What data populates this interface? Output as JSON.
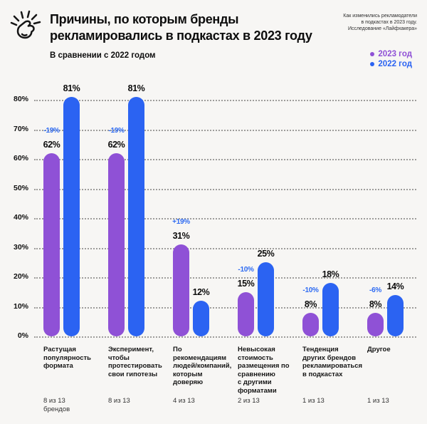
{
  "header": {
    "title_line1": "Причины, по которым бренды",
    "title_line2": "рекламировались в подкастах в 2023 году",
    "subtitle": "В сравнении с 2022 годом",
    "source_lines": "Как изменились рекламодатели\nв подкастах в 2023 году.\nИсследование «Лайфхакера»"
  },
  "legend": {
    "items": [
      {
        "label": "2023 год",
        "color": "#8f51d6"
      },
      {
        "label": "2022 год",
        "color": "#2b63f2"
      }
    ]
  },
  "colors": {
    "background": "#f7f6f4",
    "bar_2023": "#8f51d6",
    "bar_2022": "#2b63f2",
    "change_label": "#2e6bf2",
    "grid": "#9e9d9b",
    "text": "#111111"
  },
  "chart_data": {
    "type": "bar",
    "title": "Причины, по которым бренды рекламировались в подкастах в 2023 году",
    "subtitle": "В сравнении с 2022 годом",
    "xlabel": "",
    "ylabel": "",
    "ylim": [
      0,
      80
    ],
    "ytick_labels": [
      "80%",
      "70%",
      "60%",
      "50%",
      "40%",
      "30%",
      "20%",
      "10%",
      "0%"
    ],
    "grid": "dotted-horizontal",
    "legend_position": "top-right",
    "value_suffix": "%",
    "categories": [
      [
        "Растущая",
        "популярность",
        "формата"
      ],
      [
        "Эксперимент,",
        "чтобы",
        "протестировать",
        "свои гипотезы"
      ],
      [
        "По",
        "рекомендациям",
        "людей/компаний,",
        "которым",
        "доверяю"
      ],
      [
        "Невысокая",
        "стоимость",
        "размещения по",
        "сравнению",
        "с другими",
        "форматами"
      ],
      [
        "Тенденция",
        "других брендов",
        "рекламироваться",
        "в подкастах"
      ],
      [
        "Другое"
      ]
    ],
    "counts": [
      [
        "8 из 13",
        "брендов"
      ],
      [
        "8 из 13"
      ],
      [
        "4 из 13"
      ],
      [
        "2 из 13"
      ],
      [
        "1 из 13"
      ],
      [
        "1 из 13"
      ]
    ],
    "series": [
      {
        "name": "2023 год",
        "color": "#8f51d6",
        "values": [
          62,
          62,
          31,
          15,
          8,
          8
        ]
      },
      {
        "name": "2022 год",
        "color": "#2b63f2",
        "values": [
          81,
          81,
          12,
          25,
          18,
          14
        ]
      }
    ],
    "change_labels": [
      "-19%",
      "-19%",
      "+19%",
      "-10%",
      "-10%",
      "-6%"
    ]
  }
}
